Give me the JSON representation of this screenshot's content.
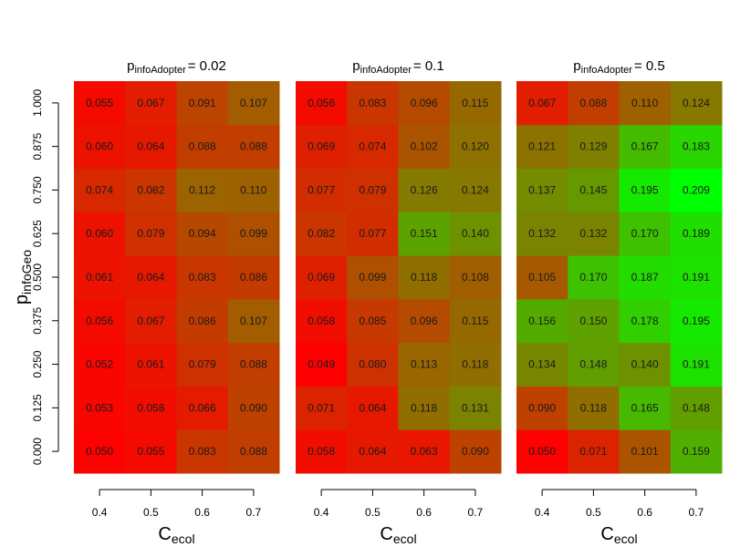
{
  "chart_data": {
    "type": "heatmap",
    "xlabel": {
      "main": "C",
      "sub": "ecol"
    },
    "ylabel": {
      "main": "p",
      "sub": "infoGeo"
    },
    "x_ticks": [
      "0.4",
      "0.5",
      "0.6",
      "0.7"
    ],
    "y_ticks": [
      "0.000",
      "0.125",
      "0.250",
      "0.375",
      "0.500",
      "0.625",
      "0.750",
      "0.875",
      "1.000"
    ],
    "x": [
      0.4,
      0.5,
      0.6,
      0.7
    ],
    "y": [
      0.0,
      0.125,
      0.25,
      0.375,
      0.5,
      0.625,
      0.75,
      0.875,
      1.0
    ],
    "color_scale": {
      "low": "#ff0000",
      "high": "#00ff00",
      "min": 0.049,
      "max": 0.209
    },
    "panels": [
      {
        "title": {
          "main": "p",
          "sub": "infoAdopter",
          "eq": "= 0.02"
        },
        "rows_bottom_to_top": [
          [
            "0.050",
            "0.055",
            "0.083",
            "0.088"
          ],
          [
            "0.053",
            "0.058",
            "0.066",
            "0.090"
          ],
          [
            "0.052",
            "0.061",
            "0.079",
            "0.088"
          ],
          [
            "0.056",
            "0.067",
            "0.086",
            "0.107"
          ],
          [
            "0.061",
            "0.064",
            "0.083",
            "0.086"
          ],
          [
            "0.060",
            "0.079",
            "0.094",
            "0.099"
          ],
          [
            "0.074",
            "0.082",
            "0.112",
            "0.110"
          ],
          [
            "0.060",
            "0.064",
            "0.088",
            "0.088"
          ],
          [
            "0.055",
            "0.067",
            "0.091",
            "0.107"
          ]
        ]
      },
      {
        "title": {
          "main": "p",
          "sub": "infoAdopter",
          "eq": "= 0.1"
        },
        "rows_bottom_to_top": [
          [
            "0.058",
            "0.064",
            "0.063",
            "0.090"
          ],
          [
            "0.071",
            "0.064",
            "0.118",
            "0.131"
          ],
          [
            "0.049",
            "0.080",
            "0.113",
            "0.118"
          ],
          [
            "0.058",
            "0.085",
            "0.096",
            "0.115"
          ],
          [
            "0.069",
            "0.099",
            "0.118",
            "0.108"
          ],
          [
            "0.082",
            "0.077",
            "0.151",
            "0.140"
          ],
          [
            "0.077",
            "0.079",
            "0.126",
            "0.124"
          ],
          [
            "0.069",
            "0.074",
            "0.102",
            "0.120"
          ],
          [
            "0.056",
            "0.083",
            "0.096",
            "0.115"
          ]
        ]
      },
      {
        "title": {
          "main": "p",
          "sub": "infoAdopter",
          "eq": "= 0.5"
        },
        "rows_bottom_to_top": [
          [
            "0.050",
            "0.071",
            "0.101",
            "0.159"
          ],
          [
            "0.090",
            "0.118",
            "0.165",
            "0.148"
          ],
          [
            "0.134",
            "0.148",
            "0.140",
            "0.191"
          ],
          [
            "0.156",
            "0.150",
            "0.178",
            "0.195"
          ],
          [
            "0.105",
            "0.170",
            "0.187",
            "0.191"
          ],
          [
            "0.132",
            "0.132",
            "0.170",
            "0.189"
          ],
          [
            "0.137",
            "0.145",
            "0.195",
            "0.209"
          ],
          [
            "0.121",
            "0.129",
            "0.167",
            "0.183"
          ],
          [
            "0.067",
            "0.088",
            "0.110",
            "0.124"
          ]
        ]
      }
    ]
  }
}
